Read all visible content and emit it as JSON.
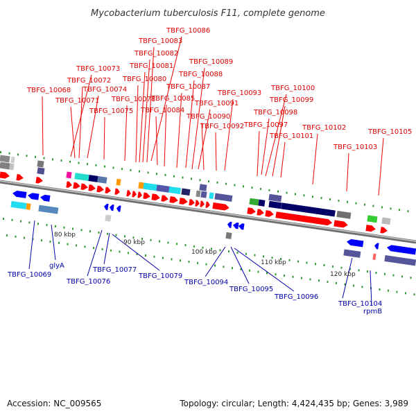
{
  "title": "Mycobacterium tuberculosis F11, complete genome",
  "footer": {
    "accession": "Accession: NC_009565",
    "summary": "Topology: circular; Length: 4,424,435 bp; Genes: 3,989"
  },
  "scale_labels": [
    "80 kbp",
    "90 kbp",
    "100 kbp",
    "110 kbp",
    "120 kbp"
  ],
  "top_labels": [
    "TBFG_10086",
    "TBFG_10083",
    "TBFG_10082",
    "TBFG_10089",
    "TBFG_10073",
    "TBFG_10081",
    "TBFG_10088",
    "TBFG_10072",
    "TBFG_10080",
    "TBFG_10068",
    "TBFG_10074",
    "TBFG_10087",
    "TBFG_10093",
    "TBFG_10100",
    "TBFG_10071",
    "TBFG_10078",
    "TBFG_10085",
    "TBFG_10099",
    "TBFG_10091",
    "TBFG_10075",
    "TBFG_10084",
    "TBFG_10098",
    "TBFG_10090",
    "TBFG_10097",
    "TBFG_10092",
    "TBFG_10102",
    "TBFG_10105",
    "TBFG_10101",
    "TBFG_10103"
  ],
  "bottom_labels": [
    "TBFG_10069",
    "glyA",
    "TBFG_10076",
    "TBFG_10077",
    "TBFG_10079",
    "TBFG_10094",
    "TBFG_10095",
    "TBFG_10096",
    "TBFG_10104",
    "rpmB"
  ],
  "colors": {
    "forward": "#ff0000",
    "reverse": "#0000ff",
    "top_label": "#dd0000",
    "bottom_label": "#0000aa",
    "backbone": "#888888"
  }
}
